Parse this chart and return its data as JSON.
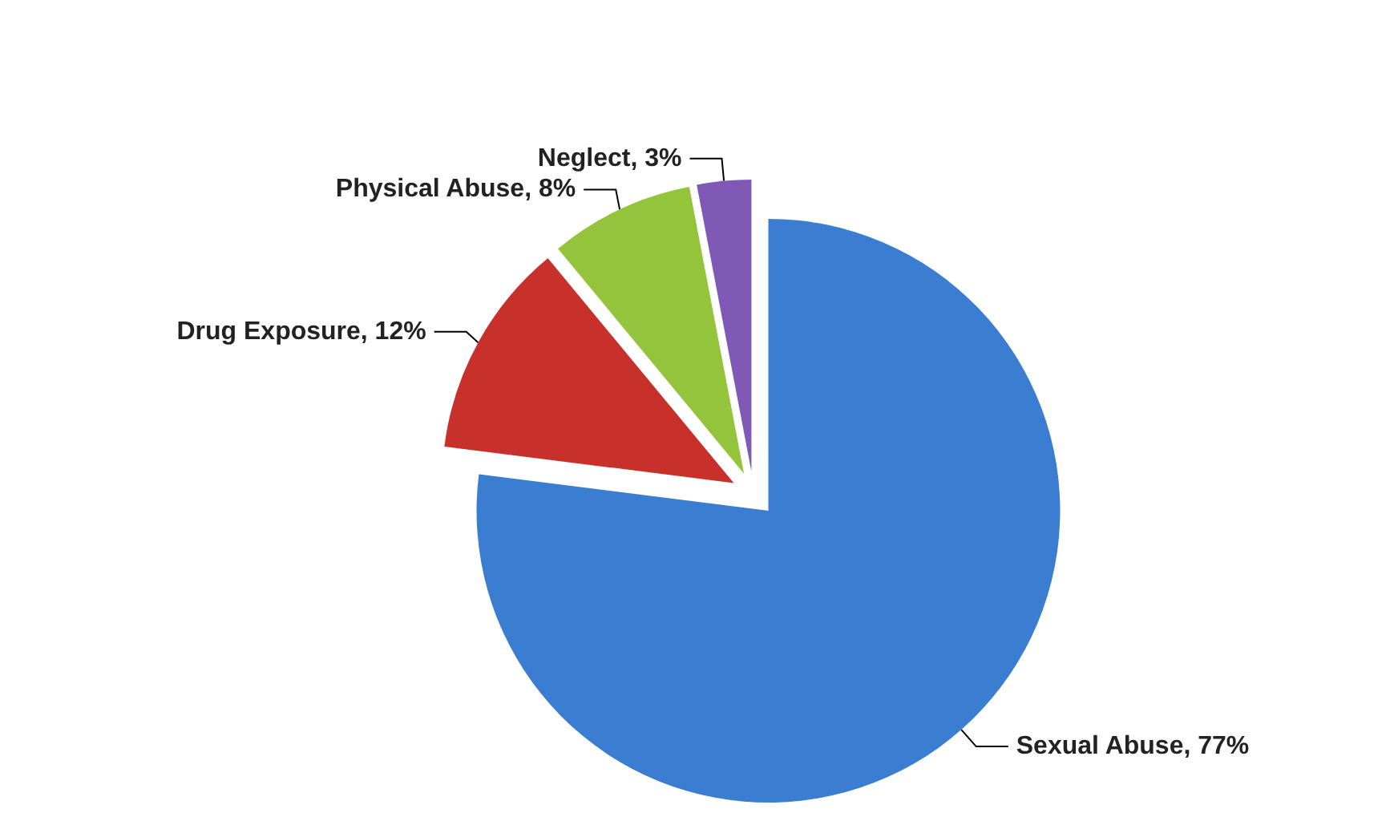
{
  "chart_data": {
    "type": "pie",
    "categories": [
      "Sexual Abuse",
      "Drug Exposure",
      "Physical Abuse",
      "Neglect"
    ],
    "values": [
      77,
      12,
      8,
      3
    ],
    "colors": [
      "#3b7dd0",
      "#c8302c",
      "#94c43c",
      "#7f59b5"
    ],
    "value_labels": [
      "77%",
      "12%",
      "8%",
      "3%"
    ],
    "legend": false
  }
}
